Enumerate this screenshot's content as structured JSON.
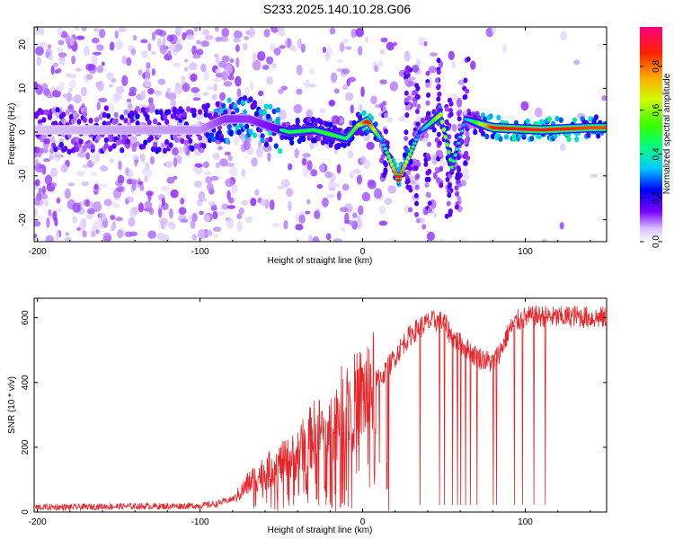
{
  "title": "S233.2025.140.10.28.G06",
  "chart_data": [
    {
      "type": "heatmap",
      "xlabel": "Height of straight line (km)",
      "ylabel": "Frequency (Hz)",
      "xlim": [
        -202,
        150
      ],
      "ylim": [
        -25,
        24
      ],
      "xticks": [
        -200,
        -100,
        0,
        100
      ],
      "yticks": [
        -20,
        -10,
        0,
        10,
        20
      ],
      "colorbar": {
        "label": "Normalized spectral amplitude",
        "range": [
          0,
          0.98
        ],
        "ticks": [
          "0.0",
          "0.2",
          "0.4",
          "0.6",
          "0.8"
        ]
      },
      "ridge": [
        {
          "x": -200,
          "freq": 0.5,
          "amp": 0.15
        },
        {
          "x": -150,
          "freq": 0.5,
          "amp": 0.18
        },
        {
          "x": -100,
          "freq": 0.5,
          "amp": 0.2
        },
        {
          "x": -85,
          "freq": 3,
          "amp": 0.3
        },
        {
          "x": -70,
          "freq": 3,
          "amp": 0.3
        },
        {
          "x": -55,
          "freq": 1,
          "amp": 0.35
        },
        {
          "x": -45,
          "freq": 0,
          "amp": 0.5
        },
        {
          "x": -30,
          "freq": 0.5,
          "amp": 0.5
        },
        {
          "x": -20,
          "freq": -0.5,
          "amp": 0.55
        },
        {
          "x": -10,
          "freq": -1.5,
          "amp": 0.45
        },
        {
          "x": -3,
          "freq": 1.5,
          "amp": 0.6
        },
        {
          "x": 3,
          "freq": 2.5,
          "amp": 0.95
        },
        {
          "x": 12,
          "freq": -2,
          "amp": 0.3
        },
        {
          "x": 22,
          "freq": -11,
          "amp": 0.95
        },
        {
          "x": 35,
          "freq": 0,
          "amp": 0.25
        },
        {
          "x": 48,
          "freq": 4,
          "amp": 0.7
        },
        {
          "x": 55,
          "freq": -8,
          "amp": 0.5
        },
        {
          "x": 63,
          "freq": 3,
          "amp": 0.3
        },
        {
          "x": 80,
          "freq": 1,
          "amp": 0.9
        },
        {
          "x": 110,
          "freq": 0.5,
          "amp": 0.92
        },
        {
          "x": 140,
          "freq": 1,
          "amp": 0.85
        }
      ]
    },
    {
      "type": "line",
      "xlabel": "Height of straight line (km)",
      "ylabel": "SNR (10 * v/v)",
      "xlim": [
        -202,
        150
      ],
      "ylim": [
        0,
        660
      ],
      "xticks": [
        -200,
        -100,
        0,
        100
      ],
      "yticks": [
        0,
        200,
        400,
        600
      ],
      "color": "#e8262a",
      "x": [
        -200,
        -180,
        -160,
        -140,
        -120,
        -100,
        -90,
        -80,
        -75,
        -70,
        -65,
        -60,
        -55,
        -50,
        -45,
        -40,
        -35,
        -30,
        -25,
        -20,
        -15,
        -10,
        -5,
        0,
        5,
        10,
        15,
        20,
        25,
        30,
        35,
        40,
        45,
        50,
        55,
        60,
        65,
        70,
        75,
        80,
        85,
        90,
        95,
        100,
        110,
        120,
        130,
        140,
        150
      ],
      "y": [
        15,
        15,
        17,
        18,
        18,
        20,
        25,
        40,
        60,
        90,
        110,
        120,
        140,
        150,
        160,
        180,
        210,
        240,
        250,
        260,
        300,
        330,
        340,
        360,
        380,
        410,
        440,
        480,
        520,
        550,
        570,
        585,
        590,
        585,
        540,
        520,
        500,
        480,
        470,
        460,
        500,
        560,
        590,
        600,
        605,
        600,
        605,
        600,
        600
      ],
      "dropouts": [
        -20,
        35,
        47,
        50,
        55,
        58,
        60,
        63,
        66,
        70,
        80,
        82,
        93,
        98,
        105,
        112
      ]
    }
  ]
}
